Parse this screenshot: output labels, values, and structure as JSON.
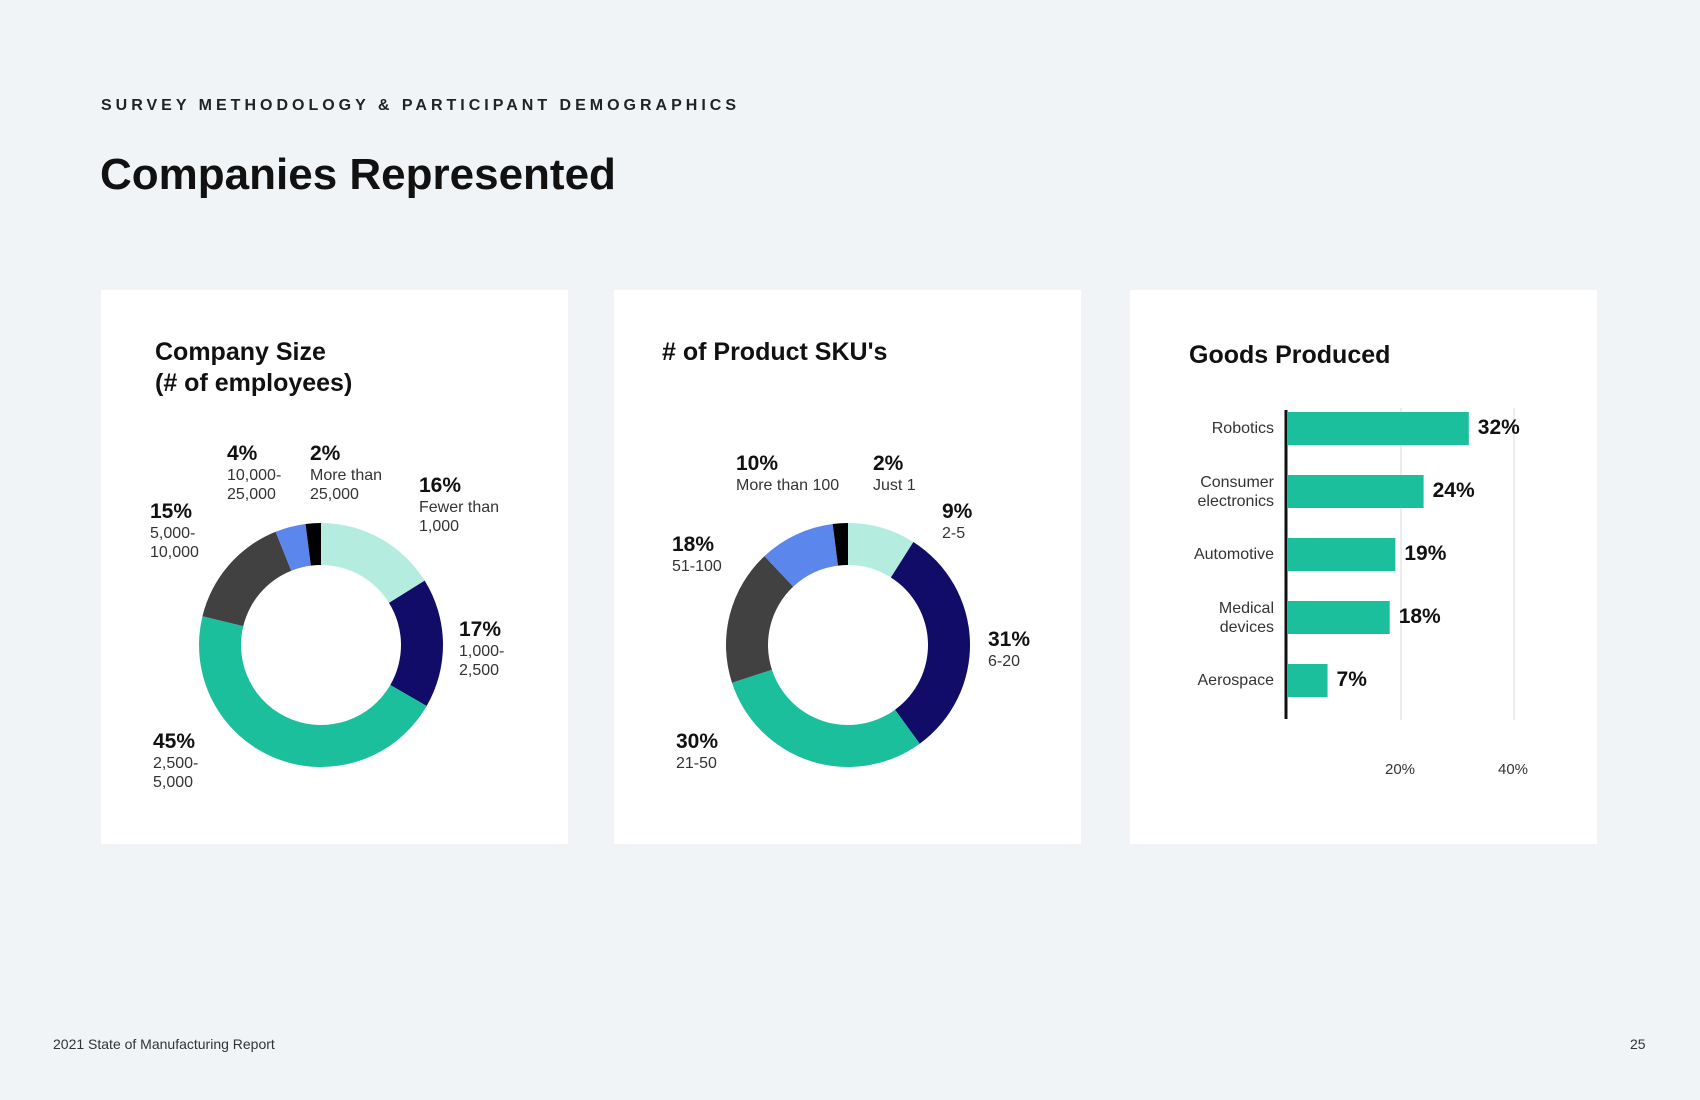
{
  "header": {
    "eyebrow": "SURVEY METHODOLOGY & PARTICIPANT DEMOGRAPHICS",
    "title": "Companies Represented"
  },
  "footer": {
    "report": "2021 State of Manufacturing Report",
    "page_number": "25"
  },
  "colors": {
    "background": "#f1f4f6",
    "card": "#ffffff",
    "mint": "#b4ede0",
    "navy": "#100c68",
    "teal": "#1bbf9c",
    "charcoal": "#414141",
    "blue": "#5b86ec",
    "black": "#000000"
  },
  "chart_data": [
    {
      "type": "pie",
      "title": "Company Size\n(# of employees)",
      "donut": true,
      "slices": [
        {
          "label": "16%",
          "value": 16,
          "category": "Fewer than\n1,000",
          "color": "#b4ede0"
        },
        {
          "label": "17%",
          "value": 17,
          "category": "1,000-\n2,500",
          "color": "#100c68"
        },
        {
          "label": "45%",
          "value": 45,
          "category": "2,500-\n5,000",
          "color": "#1bbf9c"
        },
        {
          "label": "15%",
          "value": 15,
          "category": "5,000-\n10,000",
          "color": "#414141"
        },
        {
          "label": "4%",
          "value": 4,
          "category": "10,000-\n25,000",
          "color": "#5b86ec"
        },
        {
          "label": "2%",
          "value": 2,
          "category": "More than\n25,000",
          "color": "#000000"
        }
      ]
    },
    {
      "type": "pie",
      "title": "# of Product SKU's",
      "donut": true,
      "slices": [
        {
          "label": "9%",
          "value": 9,
          "category": "2-5",
          "color": "#b4ede0"
        },
        {
          "label": "31%",
          "value": 31,
          "category": "6-20",
          "color": "#100c68"
        },
        {
          "label": "30%",
          "value": 30,
          "category": "21-50",
          "color": "#1bbf9c"
        },
        {
          "label": "18%",
          "value": 18,
          "category": "51-100",
          "color": "#414141"
        },
        {
          "label": "10%",
          "value": 10,
          "category": "More than 100",
          "color": "#5b86ec"
        },
        {
          "label": "2%",
          "value": 2,
          "category": "Just 1",
          "color": "#000000"
        }
      ]
    },
    {
      "type": "bar",
      "orientation": "horizontal",
      "title": "Goods Produced",
      "categories": [
        "Robotics",
        "Consumer\nelectronics",
        "Automotive",
        "Medical\ndevices",
        "Aerospace"
      ],
      "values": [
        32,
        24,
        19,
        18,
        7
      ],
      "value_labels": [
        "32%",
        "24%",
        "19%",
        "18%",
        "7%"
      ],
      "xlim": [
        0,
        42
      ],
      "xticks": [
        20,
        40
      ],
      "xtick_labels": [
        "20%",
        "40%"
      ],
      "grid": true,
      "color": "#1bbf9c"
    }
  ]
}
